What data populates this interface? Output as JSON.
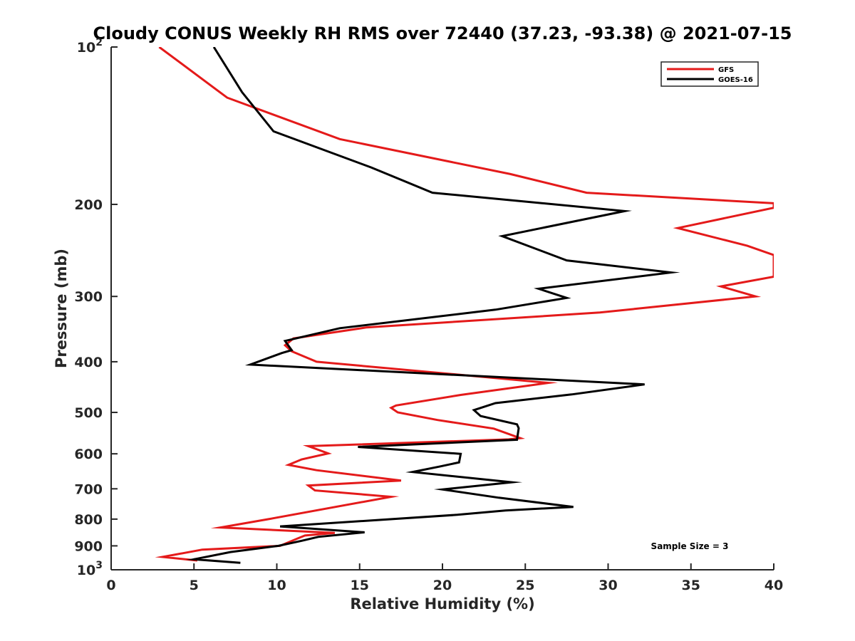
{
  "chart_data": {
    "type": "line",
    "title": "Cloudy CONUS Weekly RH RMS over 72440 (37.23, -93.38) @ 2021-07-15",
    "xlabel": "Relative Humidity (%)",
    "ylabel": "Pressure (mb)",
    "xlim": [
      0,
      40
    ],
    "ylim": [
      100,
      1000
    ],
    "yscale": "log",
    "yreversed": true,
    "grid": false,
    "legend_position": "top-right",
    "annotation": "Sample Size = 3",
    "x_ticks": [
      "0",
      "5",
      "10",
      "15",
      "20",
      "25",
      "30",
      "35",
      "40"
    ],
    "y_ticks": [
      {
        "value": 100,
        "base": "10",
        "exp": "2"
      },
      {
        "value": 200,
        "label": "200"
      },
      {
        "value": 300,
        "label": "300"
      },
      {
        "value": 400,
        "label": "400"
      },
      {
        "value": 500,
        "label": "500"
      },
      {
        "value": 600,
        "label": "600"
      },
      {
        "value": 700,
        "label": "700"
      },
      {
        "value": 800,
        "label": "800"
      },
      {
        "value": 900,
        "label": "900"
      },
      {
        "value": 1000,
        "base": "10",
        "exp": "3"
      }
    ],
    "series": [
      {
        "name": "GFS",
        "color": "#e41a1a",
        "points": [
          [
            2.9,
            100
          ],
          [
            7.0,
            125
          ],
          [
            13.8,
            150
          ],
          [
            24.1,
            175
          ],
          [
            28.7,
            190
          ],
          [
            40,
            199
          ],
          [
            40,
            203
          ],
          [
            34.2,
            222
          ],
          [
            38.4,
            240
          ],
          [
            40,
            250
          ],
          [
            40,
            275
          ],
          [
            36.8,
            287
          ],
          [
            38.9,
            300
          ],
          [
            29.5,
            322
          ],
          [
            15.4,
            344
          ],
          [
            11.0,
            361
          ],
          [
            10.5,
            372
          ],
          [
            10.9,
            382
          ],
          [
            12.4,
            400
          ],
          [
            26.4,
            439
          ],
          [
            21.1,
            463
          ],
          [
            17.2,
            485
          ],
          [
            16.9,
            490
          ],
          [
            17.3,
            500
          ],
          [
            19.7,
            517
          ],
          [
            23.1,
            537
          ],
          [
            24.7,
            560
          ],
          [
            24.0,
            563
          ],
          [
            11.9,
            580
          ],
          [
            13.1,
            599
          ],
          [
            11.5,
            615
          ],
          [
            10.7,
            630
          ],
          [
            12.4,
            645
          ],
          [
            17.5,
            675
          ],
          [
            11.9,
            690
          ],
          [
            12.3,
            705
          ],
          [
            16.9,
            725
          ],
          [
            9.5,
            800
          ],
          [
            6.6,
            830
          ],
          [
            13.5,
            850
          ],
          [
            11.7,
            860
          ],
          [
            11.3,
            870
          ],
          [
            10.2,
            900
          ],
          [
            5.5,
            915
          ],
          [
            3.1,
            945
          ],
          [
            5.2,
            960
          ]
        ]
      },
      {
        "name": "GOES-16",
        "color": "#000000",
        "points": [
          [
            6.2,
            100
          ],
          [
            7.9,
            122
          ],
          [
            9.8,
            145
          ],
          [
            15.7,
            170
          ],
          [
            19.4,
            190
          ],
          [
            31.0,
            206
          ],
          [
            23.6,
            230
          ],
          [
            27.5,
            256
          ],
          [
            33.8,
            270
          ],
          [
            25.8,
            290
          ],
          [
            27.5,
            302
          ],
          [
            23.2,
            318
          ],
          [
            13.8,
            345
          ],
          [
            10.5,
            365
          ],
          [
            10.9,
            380
          ],
          [
            10.3,
            385
          ],
          [
            8.4,
            405
          ],
          [
            32.2,
            442
          ],
          [
            27.8,
            462
          ],
          [
            23.2,
            480
          ],
          [
            21.9,
            495
          ],
          [
            22.3,
            508
          ],
          [
            24.5,
            527
          ],
          [
            24.6,
            536
          ],
          [
            24.5,
            564
          ],
          [
            14.9,
            582
          ],
          [
            21.1,
            600
          ],
          [
            21.0,
            623
          ],
          [
            19.8,
            635
          ],
          [
            18.2,
            650
          ],
          [
            24.2,
            680
          ],
          [
            20.0,
            702
          ],
          [
            23.4,
            728
          ],
          [
            27.9,
            758
          ],
          [
            23.8,
            770
          ],
          [
            20.9,
            785
          ],
          [
            10.2,
            826
          ],
          [
            15.3,
            848
          ],
          [
            12.5,
            865
          ],
          [
            11.5,
            880
          ],
          [
            10.1,
            900
          ],
          [
            7.2,
            925
          ],
          [
            5.0,
            955
          ],
          [
            7.8,
            970
          ]
        ]
      }
    ]
  }
}
